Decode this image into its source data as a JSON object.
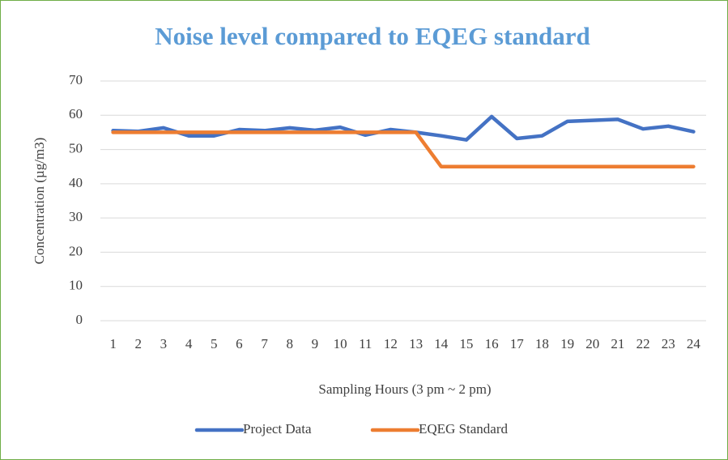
{
  "chart_data": {
    "type": "line",
    "title": "Noise level compared to EQEG standard",
    "x_label": "Sampling Hours (3 pm ~ 2 pm)",
    "y_label": "Concentration (µg/m3)",
    "categories": [
      "1",
      "2",
      "3",
      "4",
      "5",
      "6",
      "7",
      "8",
      "9",
      "10",
      "11",
      "12",
      "13",
      "14",
      "15",
      "16",
      "17",
      "18",
      "19",
      "20",
      "21",
      "22",
      "23",
      "24"
    ],
    "series": [
      {
        "name": "Project Data",
        "color": "#4472c4",
        "values": [
          55.5,
          55.3,
          56.3,
          54,
          54,
          55.8,
          55.5,
          56.3,
          55.6,
          56.5,
          54.2,
          55.8,
          55,
          54,
          52.8,
          59.6,
          53.2,
          54,
          58.2,
          58.5,
          58.8,
          56,
          56.8,
          55.2
        ]
      },
      {
        "name": "EQEG Standard",
        "color": "#ed7d31",
        "values": [
          55,
          55,
          55,
          55,
          55,
          55,
          55,
          55,
          55,
          55,
          55,
          55,
          55,
          45,
          45,
          45,
          45,
          45,
          45,
          45,
          45,
          45,
          45,
          45
        ]
      }
    ],
    "ylim": [
      0,
      70
    ],
    "yticks": [
      0,
      10,
      20,
      30,
      40,
      50,
      60,
      70
    ],
    "grid": true,
    "legend": "bottom"
  }
}
